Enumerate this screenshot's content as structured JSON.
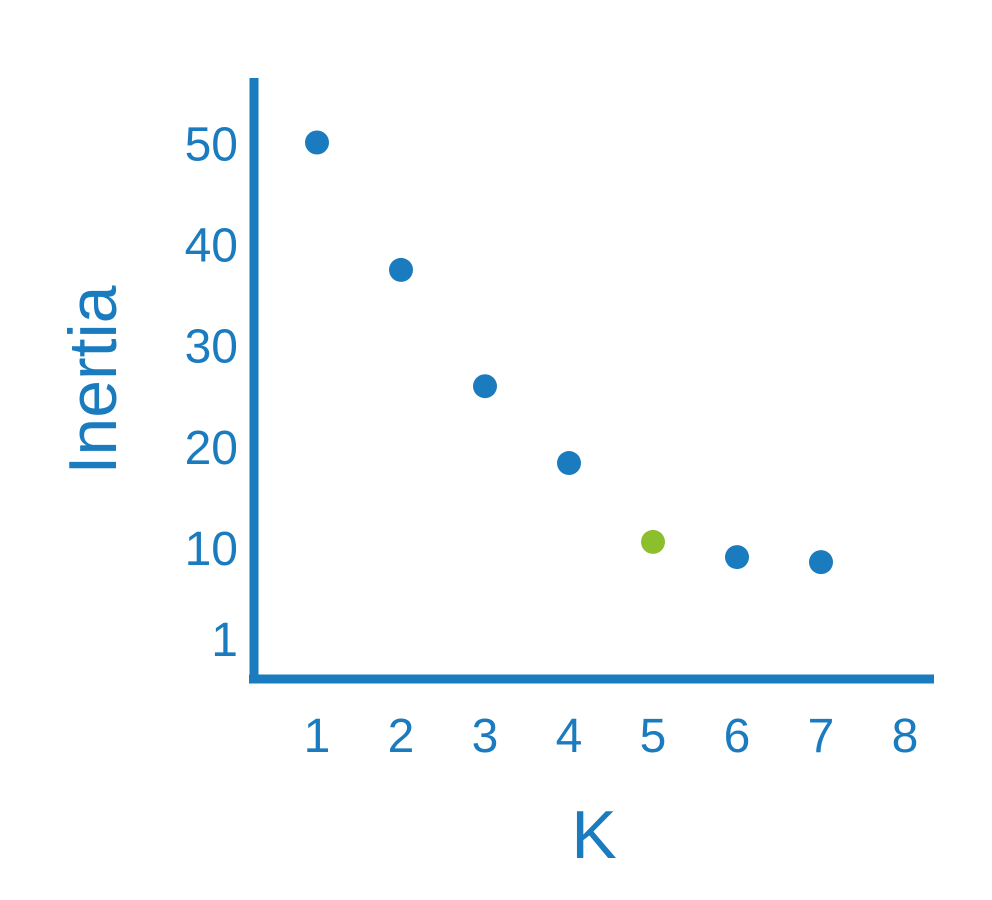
{
  "chart_data": {
    "type": "scatter",
    "xlabel": "K",
    "ylabel": "Inertia",
    "x_ticks": [
      "1",
      "2",
      "3",
      "4",
      "5",
      "6",
      "7",
      "8"
    ],
    "y_ticks": [
      "1",
      "10",
      "20",
      "30",
      "40",
      "50"
    ],
    "points": [
      {
        "x": 1,
        "y": 50.1
      },
      {
        "x": 2,
        "y": 37.5
      },
      {
        "x": 3,
        "y": 26.0
      },
      {
        "x": 4,
        "y": 18.4
      },
      {
        "x": 5,
        "y": 10.6,
        "highlight": true
      },
      {
        "x": 6,
        "y": 9.1
      },
      {
        "x": 7,
        "y": 8.6
      }
    ],
    "grid": false,
    "colors": {
      "axis": "#1a7bbf",
      "point": "#1a7bbf",
      "highlight": "#8cbf2c",
      "text": "#1a7bbf"
    }
  }
}
